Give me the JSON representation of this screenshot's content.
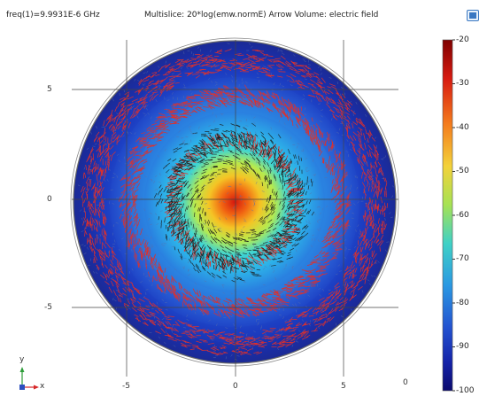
{
  "header": {
    "freq": "freq(1)=9.9931E-6 GHz",
    "title": "Multislice: 20*log(emw.normE)  Arrow Volume: electric field"
  },
  "axes": {
    "y_ticks": [
      "5",
      "0",
      "-5"
    ],
    "x_ticks": [
      "-5",
      "0",
      "5"
    ],
    "z_tick": "0",
    "triad": {
      "y": "y",
      "x": "x"
    }
  },
  "colorbar": {
    "ticks": [
      "-20",
      "-30",
      "-40",
      "-50",
      "-60",
      "-70",
      "-80",
      "-90",
      "-100"
    ],
    "min": -100,
    "max": -20
  },
  "colors": {
    "arrows": "#e0302a",
    "grid": "#444444",
    "triad_y": "#2e9d3a",
    "triad_x": "#d62728"
  },
  "icons": {
    "corner_button": "screen-icon"
  }
}
